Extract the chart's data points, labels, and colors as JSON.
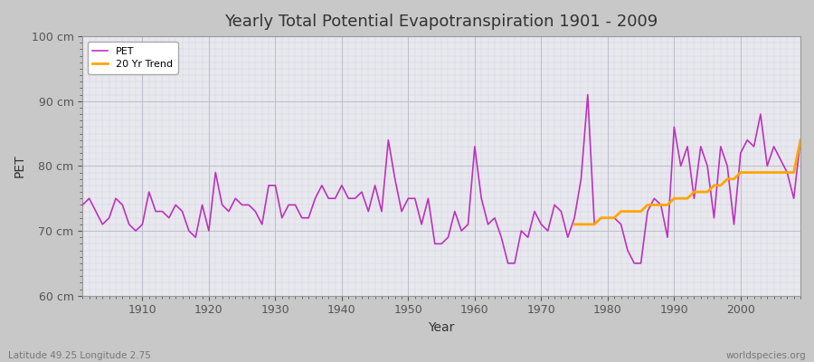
{
  "title": "Yearly Total Potential Evapotranspiration 1901 - 2009",
  "xlabel": "Year",
  "ylabel": "PET",
  "bottom_left_text": "Latitude 49.25 Longitude 2.75",
  "bottom_right_text": "worldspecies.org",
  "ylim": [
    60,
    100
  ],
  "ytick_labels": [
    "60 cm",
    "70 cm",
    "80 cm",
    "90 cm",
    "100 cm"
  ],
  "ytick_values": [
    60,
    70,
    80,
    90,
    100
  ],
  "xlim": [
    1901,
    2009
  ],
  "fig_bg_color": "#c8c8c8",
  "plot_bg_color": "#e8e8ee",
  "pet_color": "#bb33bb",
  "trend_color": "#ffa500",
  "pet_label": "PET",
  "trend_label": "20 Yr Trend",
  "years": [
    1901,
    1902,
    1903,
    1904,
    1905,
    1906,
    1907,
    1908,
    1909,
    1910,
    1911,
    1912,
    1913,
    1914,
    1915,
    1916,
    1917,
    1918,
    1919,
    1920,
    1921,
    1922,
    1923,
    1924,
    1925,
    1926,
    1927,
    1928,
    1929,
    1930,
    1931,
    1932,
    1933,
    1934,
    1935,
    1936,
    1937,
    1938,
    1939,
    1940,
    1941,
    1942,
    1943,
    1944,
    1945,
    1946,
    1947,
    1948,
    1949,
    1950,
    1951,
    1952,
    1953,
    1954,
    1955,
    1956,
    1957,
    1958,
    1959,
    1960,
    1961,
    1962,
    1963,
    1964,
    1965,
    1966,
    1967,
    1968,
    1969,
    1970,
    1971,
    1972,
    1973,
    1974,
    1975,
    1976,
    1977,
    1978,
    1979,
    1980,
    1981,
    1982,
    1983,
    1984,
    1985,
    1986,
    1987,
    1988,
    1989,
    1990,
    1991,
    1992,
    1993,
    1994,
    1995,
    1996,
    1997,
    1998,
    1999,
    2000,
    2001,
    2002,
    2003,
    2004,
    2005,
    2006,
    2007,
    2008,
    2009
  ],
  "pet_values": [
    74,
    75,
    73,
    71,
    72,
    75,
    74,
    71,
    70,
    71,
    76,
    73,
    73,
    72,
    74,
    73,
    70,
    69,
    74,
    70,
    79,
    74,
    73,
    75,
    74,
    74,
    73,
    71,
    77,
    77,
    72,
    74,
    74,
    72,
    72,
    75,
    77,
    75,
    75,
    77,
    75,
    75,
    76,
    73,
    77,
    73,
    84,
    78,
    73,
    75,
    75,
    71,
    75,
    68,
    68,
    69,
    73,
    70,
    71,
    83,
    75,
    71,
    72,
    69,
    65,
    65,
    70,
    69,
    73,
    71,
    70,
    74,
    73,
    69,
    72,
    78,
    91,
    71,
    72,
    72,
    72,
    71,
    67,
    65,
    65,
    73,
    75,
    74,
    69,
    86,
    80,
    83,
    75,
    83,
    80,
    72,
    83,
    80,
    71,
    82,
    84,
    83,
    88,
    80,
    83,
    81,
    79,
    75,
    84
  ],
  "trend_years": [
    1975,
    1976,
    1977,
    1978,
    1979,
    1980,
    1981,
    1982,
    1983,
    1984,
    1985,
    1986,
    1987,
    1988,
    1989,
    1990,
    1991,
    1992,
    1993,
    1994,
    1995,
    1996,
    1997,
    1998,
    1999,
    2000,
    2001,
    2002,
    2003,
    2004,
    2005,
    2006,
    2007,
    2008,
    2009
  ],
  "trend_values": [
    71,
    71,
    71,
    71,
    72,
    72,
    72,
    73,
    73,
    73,
    73,
    74,
    74,
    74,
    74,
    75,
    75,
    75,
    76,
    76,
    76,
    77,
    77,
    78,
    78,
    79,
    79,
    79,
    79,
    79,
    79,
    79,
    79,
    79,
    84
  ]
}
